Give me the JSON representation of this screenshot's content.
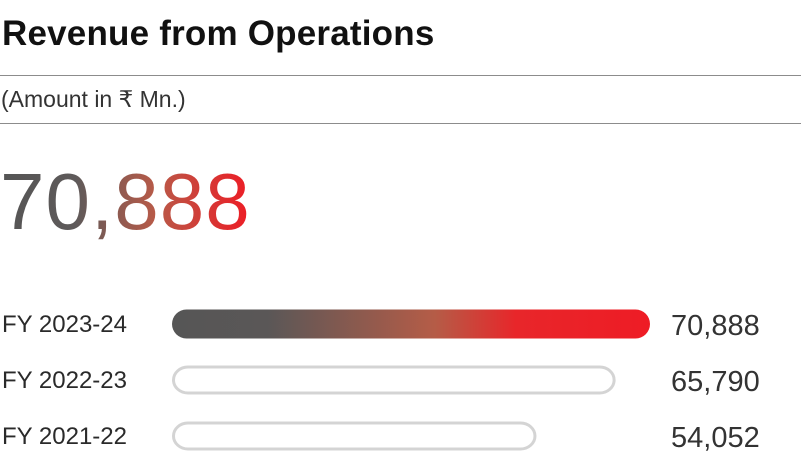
{
  "header": {
    "title": "Revenue from Operations",
    "subtitle": "(Amount in ₹ Mn.)",
    "headline_value": "70,888"
  },
  "colors": {
    "gradient_start": "#555555",
    "gradient_end": "#ee1c25",
    "bar_outline": "#d4d4d4",
    "rule": "#8c8c8c"
  },
  "chart_data": {
    "type": "bar",
    "orientation": "horizontal",
    "categories": [
      "FY 2023-24",
      "FY 2022-23",
      "FY 2021-22"
    ],
    "values": [
      70888,
      65790,
      54052
    ],
    "value_labels": [
      "70,888",
      "65,790",
      "54,052"
    ],
    "highlighted": [
      true,
      false,
      false
    ],
    "xlim": [
      0,
      70888
    ],
    "grid": false,
    "title": "Revenue from Operations"
  }
}
